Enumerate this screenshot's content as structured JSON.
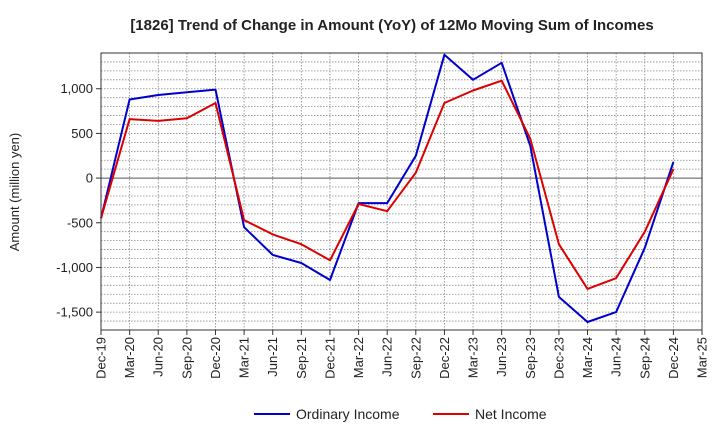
{
  "chart_data": {
    "type": "line",
    "title": "[1826]  Trend of Change in Amount (YoY) of 12Mo Moving Sum of Incomes",
    "xlabel": "",
    "ylabel": "Amount (million yen)",
    "ylim": [
      -1700,
      1400
    ],
    "yticks": [
      1000,
      500,
      0,
      -500,
      -1000,
      -1500
    ],
    "ytick_labels": [
      "1,000",
      "500",
      "0",
      "-500",
      "-1,000",
      "-1,500"
    ],
    "categories": [
      "Dec-19",
      "Mar-20",
      "Jun-20",
      "Sep-20",
      "Dec-20",
      "Mar-21",
      "Jun-21",
      "Sep-21",
      "Dec-21",
      "Mar-22",
      "Jun-22",
      "Sep-22",
      "Dec-22",
      "Mar-23",
      "Jun-23",
      "Sep-23",
      "Dec-23",
      "Mar-24",
      "Jun-24",
      "Sep-24",
      "Dec-24",
      "Mar-25"
    ],
    "series": [
      {
        "name": "Ordinary Income",
        "color": "#0000cc",
        "values": [
          -450,
          880,
          930,
          960,
          990,
          -550,
          -860,
          -950,
          -1140,
          -280,
          -280,
          250,
          1380,
          1100,
          1290,
          360,
          -1330,
          -1610,
          -1500,
          -780,
          180,
          null
        ]
      },
      {
        "name": "Net Income",
        "color": "#dd0000",
        "values": [
          -450,
          660,
          640,
          670,
          840,
          -470,
          -630,
          -740,
          -920,
          -290,
          -370,
          60,
          840,
          980,
          1090,
          440,
          -740,
          -1240,
          -1120,
          -600,
          100,
          null
        ]
      }
    ],
    "grid": true,
    "legend_position": "bottom-center"
  }
}
